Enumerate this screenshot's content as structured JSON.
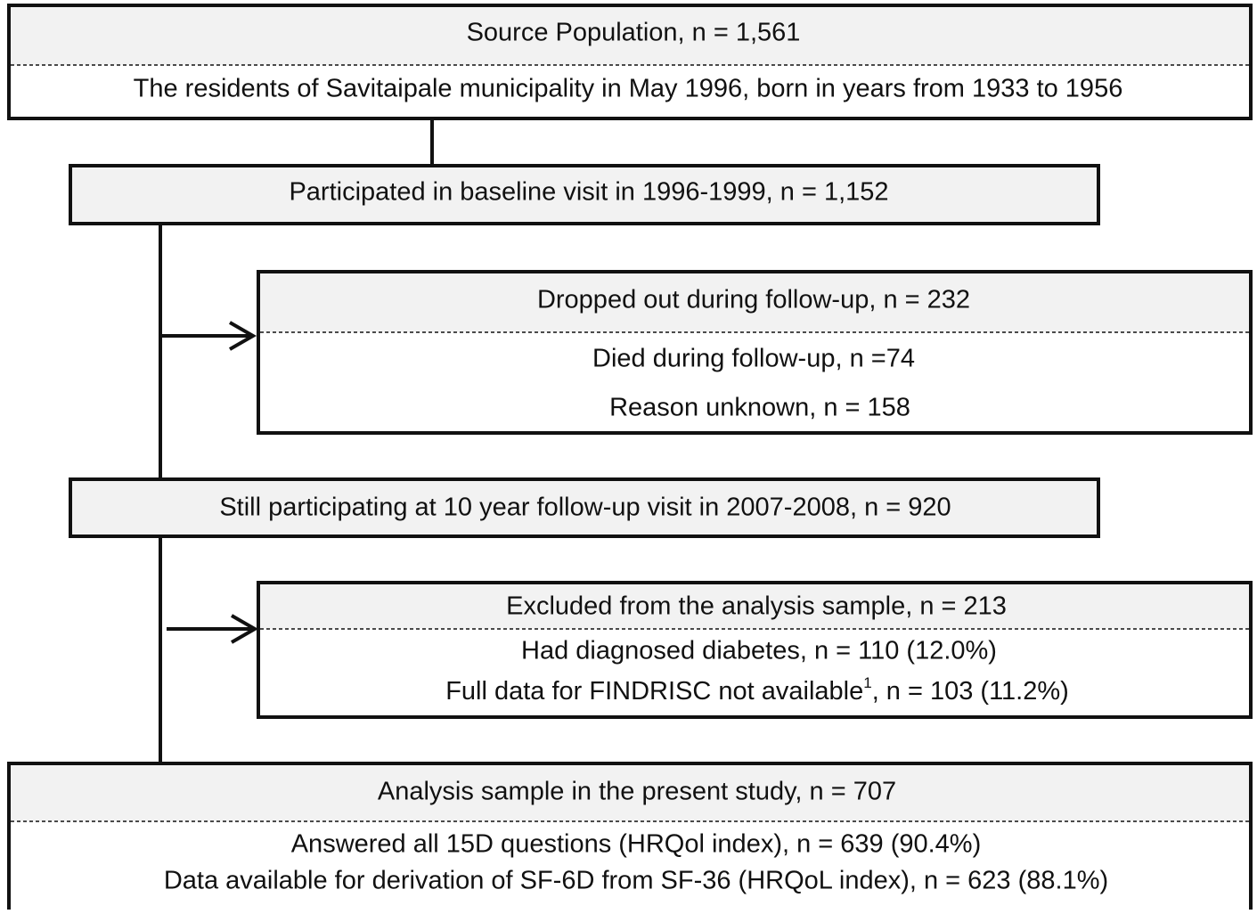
{
  "source": {
    "title": "Source Population, n = 1,561",
    "lines": [
      "The residents of Savitaipale municipality in May 1996, born in years from 1933 to 1956"
    ]
  },
  "baseline": {
    "title": "Participated in baseline visit in 1996-1999, n = 1,152"
  },
  "dropped": {
    "title": "Dropped out during follow-up, n = 232",
    "lines": [
      "Died during follow-up, n =74",
      "Reason unknown, n = 158"
    ]
  },
  "followup": {
    "title": "Still participating at 10 year follow-up visit in 2007-2008, n = 920"
  },
  "excluded": {
    "title": "Excluded from the analysis sample, n = 213",
    "lines": [
      "Had diagnosed diabetes, n = 110 (12.0%)"
    ],
    "findrisc_line": {
      "text": "Full data for FINDRISC not available",
      "superscript": "1",
      "rest": ", n = 103 (11.2%)"
    }
  },
  "analysis": {
    "title": "Analysis sample in the present study, n = 707",
    "lines": [
      "Answered all 15D questions (HRQol index), n = 639 (90.4%)",
      "Data available for derivation of SF-6D from SF-36 (HRQoL index), n = 623 (88.1%)"
    ]
  }
}
